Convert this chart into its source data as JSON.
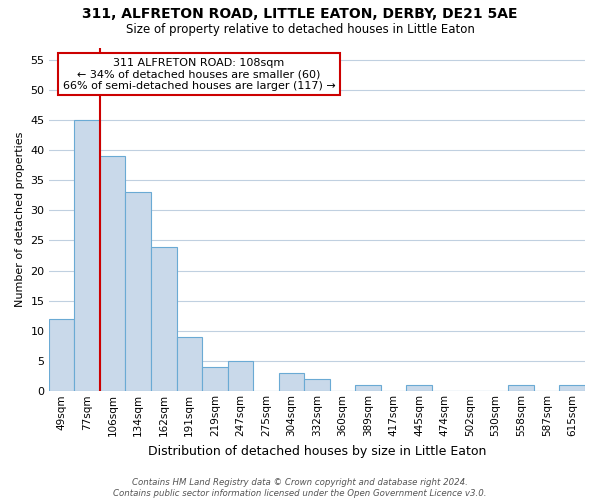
{
  "title": "311, ALFRETON ROAD, LITTLE EATON, DERBY, DE21 5AE",
  "subtitle": "Size of property relative to detached houses in Little Eaton",
  "xlabel": "Distribution of detached houses by size in Little Eaton",
  "ylabel": "Number of detached properties",
  "bar_labels": [
    "49sqm",
    "77sqm",
    "106sqm",
    "134sqm",
    "162sqm",
    "191sqm",
    "219sqm",
    "247sqm",
    "275sqm",
    "304sqm",
    "332sqm",
    "360sqm",
    "389sqm",
    "417sqm",
    "445sqm",
    "474sqm",
    "502sqm",
    "530sqm",
    "558sqm",
    "587sqm",
    "615sqm"
  ],
  "bar_values": [
    12,
    45,
    39,
    33,
    24,
    9,
    4,
    5,
    0,
    3,
    2,
    0,
    1,
    0,
    1,
    0,
    0,
    0,
    1,
    0,
    1
  ],
  "bar_color": "#c9d9ea",
  "bar_edge_color": "#6aaad4",
  "vline_x": 1.5,
  "vline_color": "#cc0000",
  "ylim": [
    0,
    57
  ],
  "yticks": [
    0,
    5,
    10,
    15,
    20,
    25,
    30,
    35,
    40,
    45,
    50,
    55
  ],
  "annotation_title": "311 ALFRETON ROAD: 108sqm",
  "annotation_line1": "← 34% of detached houses are smaller (60)",
  "annotation_line2": "66% of semi-detached houses are larger (117) →",
  "annotation_box_color": "#ffffff",
  "annotation_box_edge": "#cc0000",
  "footer1": "Contains HM Land Registry data © Crown copyright and database right 2024.",
  "footer2": "Contains public sector information licensed under the Open Government Licence v3.0.",
  "background_color": "#ffffff",
  "grid_color": "#c0d0e0"
}
